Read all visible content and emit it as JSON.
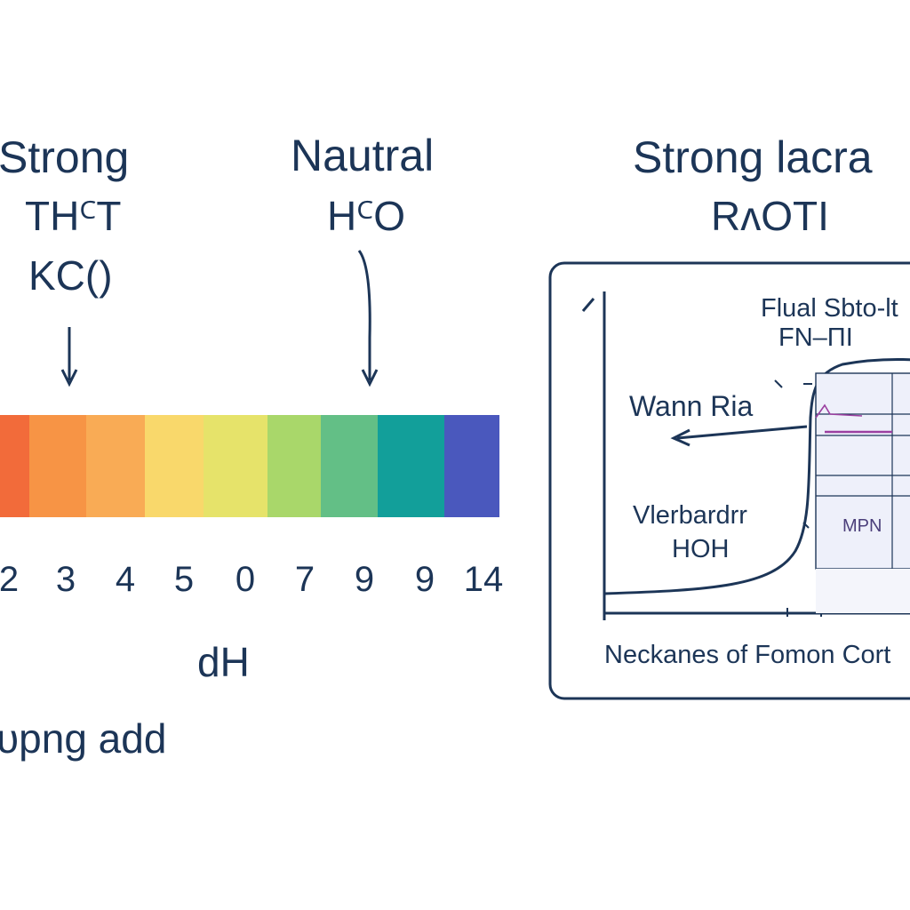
{
  "left_heading": {
    "title": "Strong",
    "formula1": "THꟲT",
    "formula2": "KC()"
  },
  "center_heading": {
    "title": "Nautral",
    "formula": "HꟲO"
  },
  "right_heading": {
    "title": "Strong lacra",
    "formula": "RʌOTI"
  },
  "ph_scale": {
    "colors": [
      "#f26b3a",
      "#f79445",
      "#f9ab55",
      "#f9d86b",
      "#e6e36a",
      "#a9d76a",
      "#63bf86",
      "#129f9a",
      "#4a58bd"
    ],
    "weights": [
      33,
      64,
      66,
      66,
      72,
      60,
      64,
      75,
      62
    ],
    "tick_labels": [
      "2",
      "3",
      "4",
      "5",
      "0",
      "7",
      "9",
      "9",
      "14"
    ],
    "axis_label": "dH",
    "bottom_label": "ᴜpng add"
  },
  "graph": {
    "top_label_1": "Flual Sbto-lt",
    "top_label_2": "FN–ΠI",
    "left_label": "Wann Ria",
    "middle_label_1": "Vlerbardrr",
    "middle_label_2": "HOH",
    "inner_label": "MPN",
    "bottom_label": "Neckanes of Fomon Cort"
  },
  "colors": {
    "ink": "#1c3557",
    "accent_line": "#9b3fa0",
    "cell_fill": "#eef0fa"
  }
}
